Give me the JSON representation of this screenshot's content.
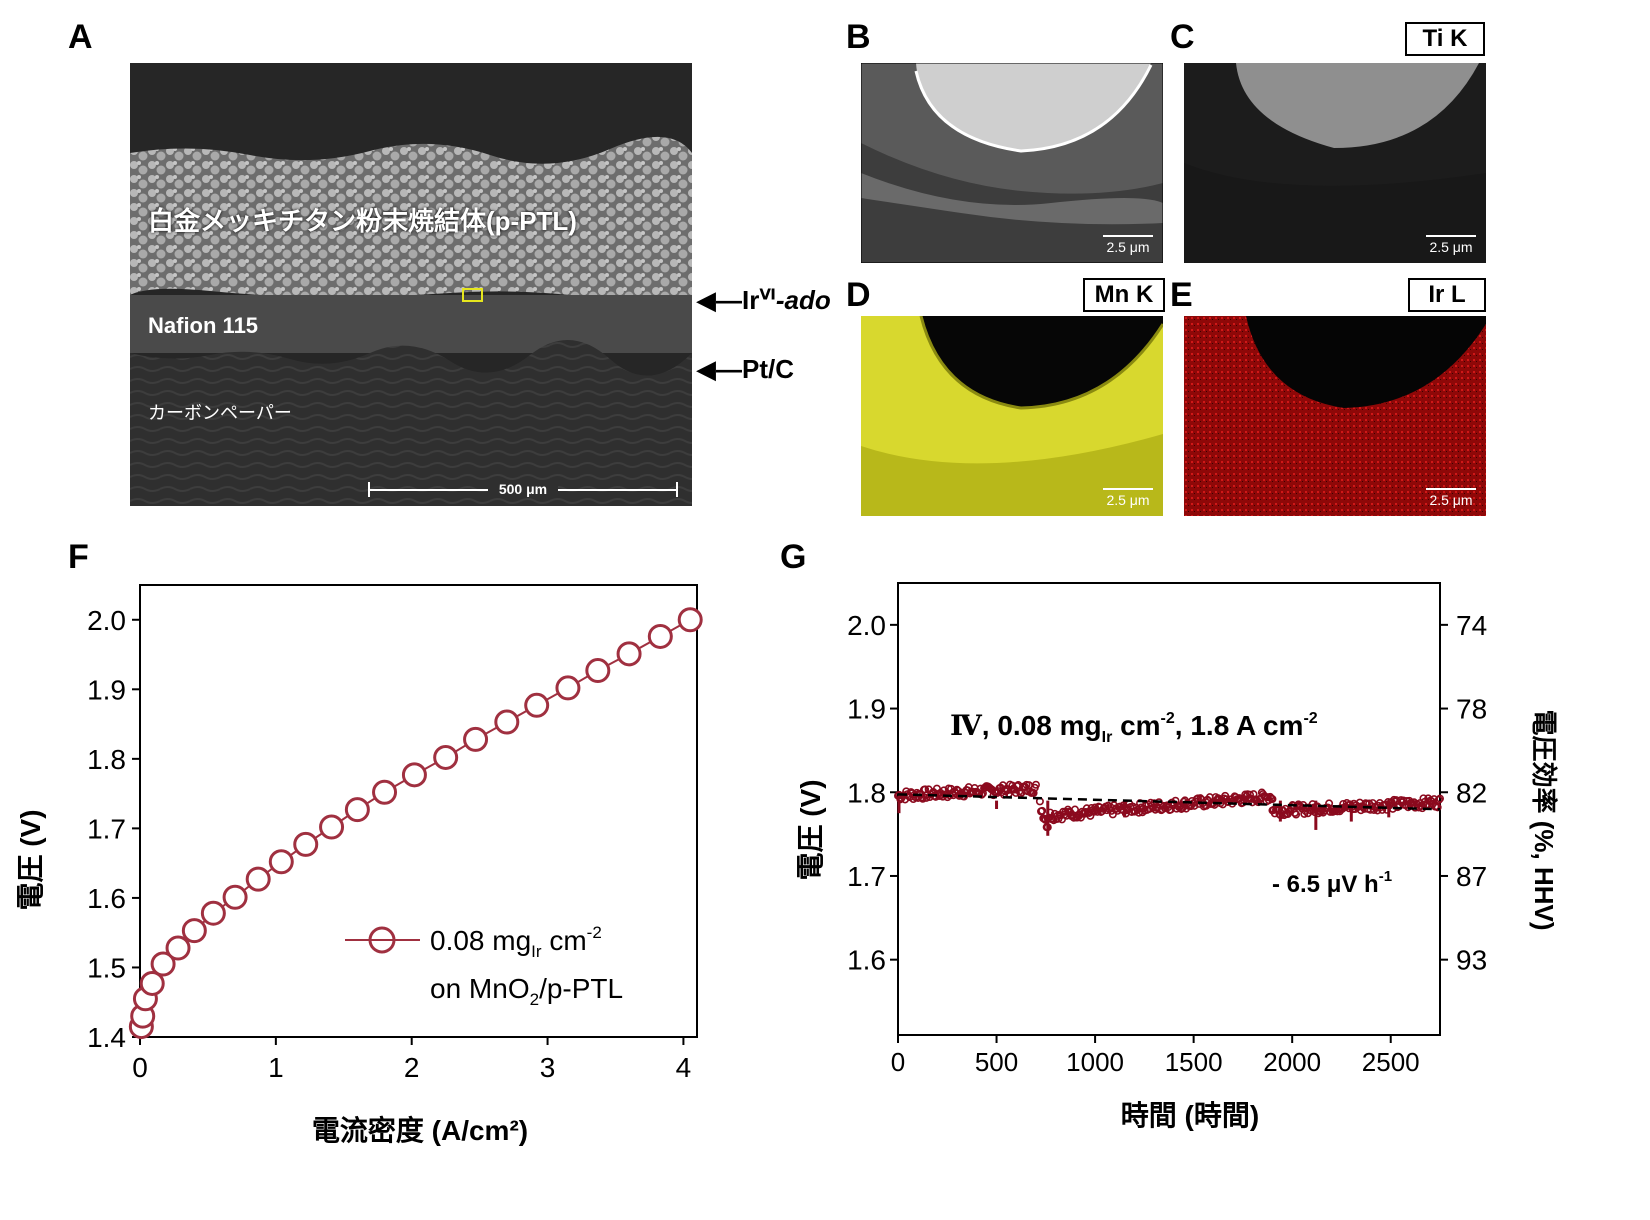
{
  "panels": {
    "A": "A",
    "B": "B",
    "C": "C",
    "D": "D",
    "E": "E",
    "F": "F",
    "G": "G"
  },
  "sem": {
    "ptl_label": "白金メッキチタン粉末焼結体(p-PTL)",
    "nafion_label": "Nafion 115",
    "carbon_label": "カーボンペーパー",
    "scale_bar": "500 μm",
    "arrow_top": "Ir",
    "arrow_top_sup": "Ⅵ",
    "arrow_top_suffix": "-ado",
    "arrow_bottom": "Pt/C"
  },
  "maps": {
    "c_label": "Ti K",
    "d_label": "Mn K",
    "e_label": "Ir L",
    "scale": "2.5 μm",
    "colors": {
      "mn": "#e8e83a",
      "ir": "#c01010"
    }
  },
  "chart_data": [
    {
      "type": "scatter",
      "panel": "F",
      "xlabel": "電流密度 (A/cm²)",
      "ylabel": "電圧 (V)",
      "xlim": [
        0,
        4.1
      ],
      "ylim": [
        1.4,
        2.05
      ],
      "xticks": [
        "0",
        "1",
        "2",
        "3",
        "4"
      ],
      "yticks": [
        "1.4",
        "1.5",
        "1.6",
        "1.7",
        "1.8",
        "1.9",
        "2.0"
      ],
      "series": [
        {
          "name_main": "0.08 mg",
          "name_sub": "Ir",
          "name_tail": " cm",
          "name_sup": "-2",
          "name_line2a": "on MnO",
          "name_line2sub": "2",
          "name_line2b": "/p-PTL",
          "color": "#a03040",
          "x": [
            0.01,
            0.02,
            0.04,
            0.09,
            0.17,
            0.28,
            0.4,
            0.54,
            0.7,
            0.87,
            1.04,
            1.22,
            1.41,
            1.6,
            1.8,
            2.02,
            2.25,
            2.47,
            2.7,
            2.92,
            3.15,
            3.37,
            3.6,
            3.83,
            4.05
          ],
          "y": [
            1.415,
            1.43,
            1.455,
            1.477,
            1.505,
            1.528,
            1.553,
            1.578,
            1.601,
            1.627,
            1.652,
            1.677,
            1.702,
            1.727,
            1.752,
            1.777,
            1.802,
            1.828,
            1.853,
            1.877,
            1.902,
            1.927,
            1.951,
            1.976,
            2.0
          ]
        }
      ]
    },
    {
      "type": "scatter",
      "panel": "G",
      "xlabel": "時間 (時間)",
      "ylabel": "電圧 (V)",
      "ylabel_right": "電圧効率 (%, HHV)",
      "xlim": [
        0,
        2750
      ],
      "ylim": [
        1.51,
        2.05
      ],
      "xticks": [
        "0",
        "500",
        "1000",
        "1500",
        "2000",
        "2500"
      ],
      "yticks": [
        "1.6",
        "1.7",
        "1.8",
        "1.9",
        "2.0"
      ],
      "yticks_right": [
        "74",
        "78",
        "82",
        "87",
        "93"
      ],
      "annotation_roman": "Ⅳ",
      "annotation_a": ",  0.08 mg",
      "annotation_sub": "Ir",
      "annotation_b": " cm",
      "annotation_sup1": "-2",
      "annotation_c": ", 1.8 A cm",
      "annotation_sup2": "-2",
      "rate_a": "- 6.5 μV h",
      "rate_sup": "-1",
      "color": "#8b0a1e",
      "trend": {
        "x": [
          0,
          2750
        ],
        "y": [
          1.7975,
          1.7797
        ]
      },
      "segments": [
        {
          "x0": 0,
          "x1": 700,
          "y0": 1.796,
          "y1": 1.805
        },
        {
          "x0": 720,
          "x1": 760,
          "y0": 1.785,
          "y1": 1.76
        },
        {
          "x0": 760,
          "x1": 1900,
          "y0": 1.772,
          "y1": 1.795
        },
        {
          "x0": 1900,
          "x1": 2750,
          "y0": 1.778,
          "y1": 1.788
        }
      ]
    }
  ]
}
